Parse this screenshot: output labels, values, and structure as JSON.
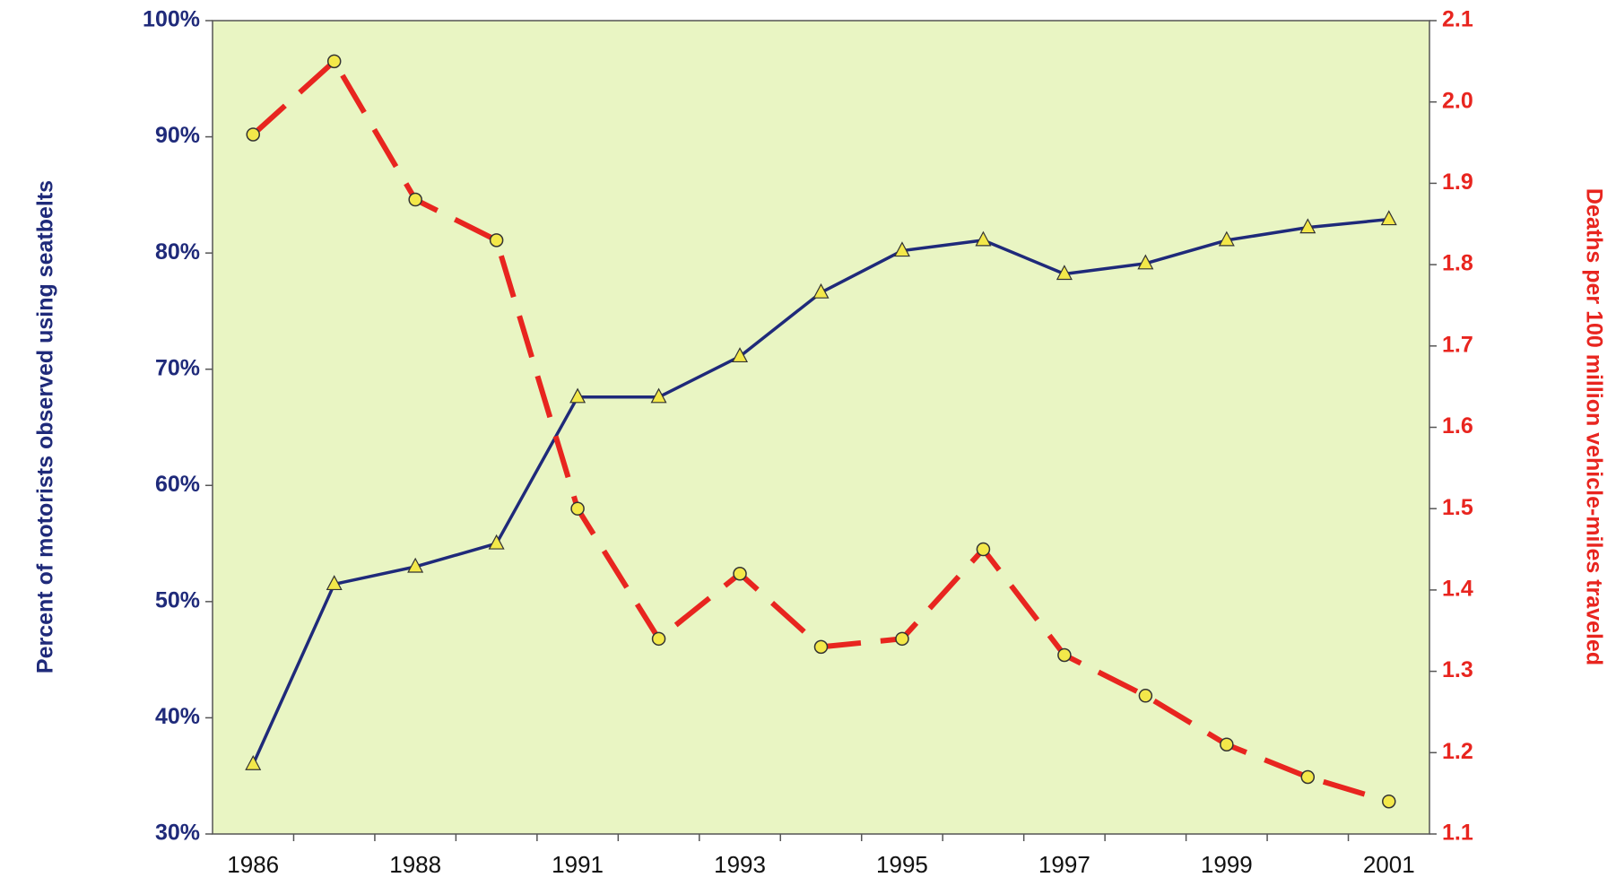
{
  "chart_data": {
    "type": "line",
    "ylabel": "Percent of motorists observed using seatbelts",
    "y2label": "Deaths per 100 million vehicle-miles traveled",
    "categories": [
      "1986",
      null,
      "1988",
      null,
      "1991",
      null,
      "1993",
      null,
      "1995",
      null,
      "1997",
      null,
      "1999",
      null,
      "2001"
    ],
    "series": [
      {
        "color": "#1f2a7a",
        "marker": "triangle",
        "values": [
          36,
          51.5,
          53,
          55,
          67.6,
          67.6,
          71.1,
          76.6,
          80.2,
          81.1,
          78.2,
          79.1,
          81.1,
          82.2,
          82.9
        ]
      },
      {
        "color": "#e8251f",
        "marker": "circle",
        "dashed": true,
        "axis": "y2",
        "values": [
          1.96,
          2.05,
          1.88,
          1.83,
          1.5,
          1.34,
          1.42,
          1.33,
          1.34,
          1.45,
          1.32,
          1.27,
          1.21,
          1.17,
          1.14
        ]
      }
    ],
    "ylim": [
      30,
      100
    ],
    "yticks": [
      {
        "value": 30,
        "label": "30%"
      },
      {
        "value": 40,
        "label": "40%"
      },
      {
        "value": 50,
        "label": "50%"
      },
      {
        "value": 60,
        "label": "60%"
      },
      {
        "value": 70,
        "label": "70%"
      },
      {
        "value": 80,
        "label": "80%"
      },
      {
        "value": 90,
        "label": "90%"
      },
      {
        "value": 100,
        "label": "100%"
      }
    ],
    "y2lim": [
      1.1,
      2.1
    ],
    "y2ticks": [
      1.1,
      1.2,
      1.3,
      1.4,
      1.5,
      1.6,
      1.7,
      1.8,
      1.9,
      {
        "value": 2,
        "label": "2.0"
      },
      2.1
    ],
    "background": "#e9f5c3",
    "marker_fill": "#f3e84a"
  }
}
